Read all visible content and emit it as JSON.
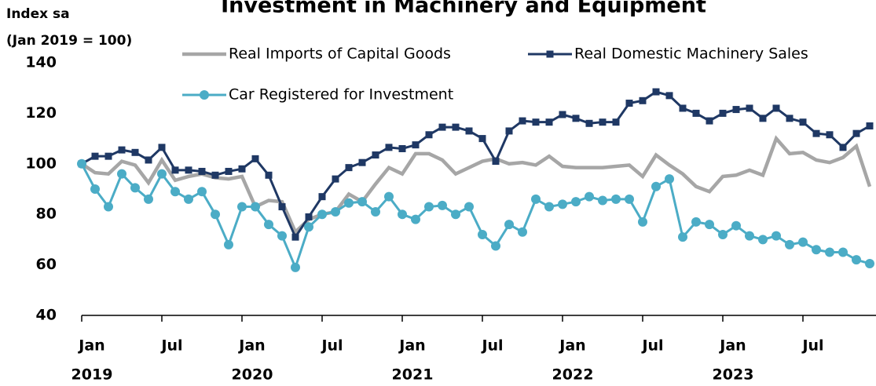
{
  "chart_data": {
    "type": "line",
    "title": "Investment in Machinery and Equipment",
    "y_label_lines": [
      "Index sa",
      "(Jan 2019 = 100)"
    ],
    "categories": [
      "Jan",
      null,
      null,
      null,
      null,
      null,
      "Jul",
      null,
      null,
      null,
      null,
      null,
      "Jan",
      null,
      null,
      null,
      null,
      null,
      "Jul",
      null,
      null,
      null,
      null,
      null,
      "Jan",
      null,
      null,
      null,
      null,
      null,
      "Jul",
      null,
      null,
      null,
      null,
      null,
      "Jan",
      null,
      null,
      null,
      null,
      null,
      "Jul",
      null,
      null,
      null,
      null,
      null,
      "Jan",
      null,
      null,
      null,
      null,
      null,
      "Jul",
      null,
      null,
      null,
      null,
      null
    ],
    "x_group_labels": [
      "2019",
      "2020",
      "2021",
      "2022",
      "2023"
    ],
    "ylim": [
      40,
      140
    ],
    "yticks": [
      40,
      60,
      80,
      100,
      120,
      140
    ],
    "series": [
      {
        "name": "Real Imports of Capital Goods",
        "color": "#a6a6a6",
        "marker": "none",
        "values": [
          100,
          96.5,
          96,
          101,
          99.5,
          92.5,
          101.5,
          93.5,
          95,
          96,
          94.5,
          94,
          95,
          83,
          85.5,
          85,
          73,
          78,
          80,
          81,
          88,
          85,
          92,
          98.5,
          96,
          104,
          104,
          101.5,
          96,
          98.5,
          101,
          102,
          100,
          100.5,
          99.5,
          103,
          99,
          98.5,
          98.5,
          98.5,
          99,
          99.5,
          95,
          103.5,
          99.5,
          96,
          91,
          89,
          95,
          95.5,
          97.5,
          95.5,
          110,
          104,
          104.5,
          101.5,
          100.5,
          102.5,
          107,
          91
        ]
      },
      {
        "name": "Real Domestic Machinery Sales",
        "color": "#1f3864",
        "marker": "square",
        "values": [
          100,
          103,
          103,
          105.5,
          104.5,
          101.5,
          106.5,
          97.5,
          97.5,
          97,
          95.5,
          97,
          98,
          102,
          95.5,
          83,
          71,
          79,
          87,
          94,
          98.5,
          100.5,
          103.5,
          106.5,
          106,
          107.5,
          111.5,
          114.5,
          114.5,
          113,
          110,
          101,
          113,
          117,
          116.5,
          116.5,
          119.5,
          118,
          116,
          116.5,
          116.5,
          124,
          125,
          128.5,
          127,
          122,
          120,
          117,
          120,
          121.5,
          122,
          118,
          122,
          118,
          116.5,
          112,
          111.5,
          106.5,
          112,
          115
        ]
      },
      {
        "name": "Car Registered for Investment",
        "color": "#4bacc6",
        "marker": "circle",
        "values": [
          100,
          90,
          83,
          96,
          90.5,
          86,
          96,
          89,
          86,
          89,
          80,
          68,
          83,
          83,
          76,
          71.5,
          59,
          75,
          80,
          81,
          84.5,
          85,
          81,
          87,
          80,
          78,
          83,
          83.5,
          80,
          83,
          72,
          67.5,
          76,
          73,
          86,
          83,
          84,
          85,
          87,
          85.5,
          86,
          86,
          77,
          91,
          94,
          71,
          77,
          76,
          72,
          75.5,
          71.5,
          70,
          71.5,
          68,
          69,
          66,
          65,
          65,
          62,
          60.5
        ]
      }
    ]
  }
}
